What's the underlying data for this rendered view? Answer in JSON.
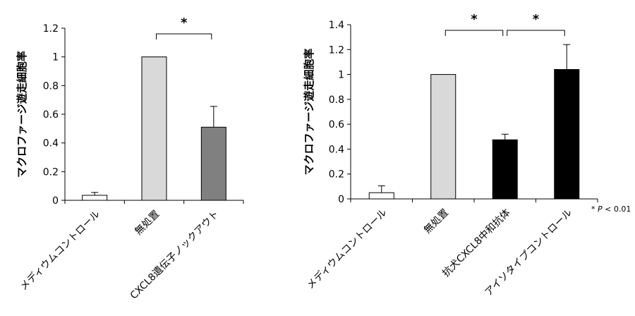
{
  "chart_data": [
    {
      "type": "bar",
      "ylabel": "マクロファージ遊走細胞率",
      "ylim": [
        0,
        1.2
      ],
      "yticks": [
        "0",
        "0.2",
        "0.4",
        "0.6",
        "0.8",
        "1",
        "1.2"
      ],
      "categories": [
        "メディウムコントロール",
        "無処置",
        "CXCL8遺伝子ノックアウト"
      ],
      "values": [
        0.035,
        1.0,
        0.51
      ],
      "errors": [
        0.02,
        0.0,
        0.145
      ],
      "colors": [
        "#ffffff",
        "#d9d9d9",
        "#808080"
      ],
      "significance": [
        {
          "from": 1,
          "to": 2,
          "label": "*"
        }
      ]
    },
    {
      "type": "bar",
      "ylabel": "マクロファージ遊走細胞率",
      "ylim": [
        0,
        1.4
      ],
      "yticks": [
        "0",
        "0.2",
        "0.4",
        "0.6",
        "0.8",
        "1",
        "1.2",
        "1.4"
      ],
      "categories": [
        "メディウムコントロール",
        "無処置",
        "抗犬CXCL8中和抗体",
        "アイソタイプコントロール"
      ],
      "values": [
        0.05,
        1.0,
        0.475,
        1.04
      ],
      "errors": [
        0.055,
        0.0,
        0.045,
        0.2
      ],
      "colors": [
        "#ffffff",
        "#d9d9d9",
        "#000000",
        "#000000"
      ],
      "significance": [
        {
          "from": 1,
          "to": 2,
          "label": "*"
        },
        {
          "from": 2,
          "to": 3,
          "label": "*"
        }
      ]
    }
  ],
  "footnote": {
    "prefix": "* ",
    "italic": "P",
    "suffix": " < 0.01"
  }
}
